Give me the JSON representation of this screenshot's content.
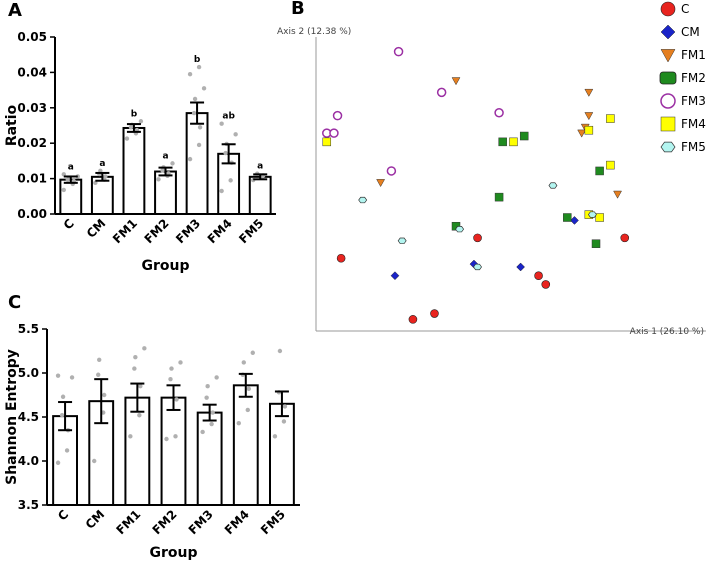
{
  "panels": {
    "a": "A",
    "b": "B",
    "c": "C"
  },
  "colors": {
    "C": "#e8241f",
    "CM": "#1a24c8",
    "FM1": "#e57f20",
    "FM2": "#1f8a1f",
    "FM3": "#9b2fa3",
    "FM4": "#ffff00",
    "FM5": "#b3f5f0",
    "grid_dot": "#b0b0b0",
    "axis_pcoa": "#9a9a9a"
  },
  "chart_data": [
    {
      "id": "A",
      "type": "bar",
      "xlabel": "Group",
      "ylabel": "Ratio",
      "ylim": [
        0,
        0.05
      ],
      "yticks": [
        "0.00",
        "0.01",
        "0.02",
        "0.03",
        "0.04",
        "0.05"
      ],
      "yticks_values": [
        0,
        0.01,
        0.02,
        0.03,
        0.04,
        0.05
      ],
      "categories": [
        "C",
        "CM",
        "FM1",
        "FM2",
        "FM3",
        "FM4",
        "FM5"
      ],
      "values": [
        0.0097,
        0.0105,
        0.0243,
        0.012,
        0.0285,
        0.017,
        0.0105
      ],
      "errors": [
        0.0009,
        0.0011,
        0.0011,
        0.0011,
        0.003,
        0.0027,
        0.0007
      ],
      "significance": [
        "a",
        "a",
        "b",
        "a",
        "b",
        "ab",
        "a"
      ],
      "points": [
        [
          0.0068,
          0.0085,
          0.0093,
          0.0097,
          0.0101,
          0.0106,
          0.0112
        ],
        [
          0.0088,
          0.0097,
          0.0106,
          0.0113,
          0.0122
        ],
        [
          0.0213,
          0.0228,
          0.0237,
          0.0245,
          0.0252,
          0.0262
        ],
        [
          0.0098,
          0.0108,
          0.0115,
          0.0123,
          0.0132,
          0.0143
        ],
        [
          0.0155,
          0.0195,
          0.0245,
          0.0285,
          0.0325,
          0.0355,
          0.0395,
          0.0415
        ],
        [
          0.0065,
          0.0095,
          0.0145,
          0.0172,
          0.0198,
          0.0225,
          0.0255
        ],
        [
          0.0096,
          0.0103,
          0.0109,
          0.0114
        ]
      ]
    },
    {
      "id": "B",
      "type": "scatter",
      "xlabel": "Axis 1 (26.10 %)",
      "ylabel": "Axis 2 (12.38 %)",
      "xlim": [
        0,
        100
      ],
      "ylim": [
        0,
        100
      ],
      "legend_position": "top-right",
      "series": [
        {
          "name": "C",
          "marker": "circle",
          "points": [
            [
              7,
              25
            ],
            [
              45,
              32
            ],
            [
              27,
              4
            ],
            [
              33,
              6
            ],
            [
              62,
              19
            ],
            [
              64,
              16
            ],
            [
              86,
              32
            ]
          ]
        },
        {
          "name": "CM",
          "marker": "diamond",
          "points": [
            [
              22,
              19
            ],
            [
              44,
              23
            ],
            [
              57,
              22
            ],
            [
              72,
              38
            ]
          ]
        },
        {
          "name": "FM1",
          "marker": "triangle",
          "points": [
            [
              18,
              51
            ],
            [
              39,
              86
            ],
            [
              76,
              82
            ],
            [
              76,
              74
            ],
            [
              75,
              70
            ],
            [
              74,
              68
            ],
            [
              84,
              47
            ]
          ]
        },
        {
          "name": "FM2",
          "marker": "square",
          "points": [
            [
              52,
              65
            ],
            [
              58,
              67
            ],
            [
              51,
              46
            ],
            [
              39,
              36
            ],
            [
              70,
              39
            ],
            [
              79,
              55
            ],
            [
              78,
              30
            ]
          ]
        },
        {
          "name": "FM3",
          "marker": "ring",
          "points": [
            [
              23,
              96
            ],
            [
              35,
              82
            ],
            [
              51,
              75
            ],
            [
              6,
              74
            ],
            [
              3,
              68
            ],
            [
              5,
              68
            ],
            [
              21,
              55
            ]
          ]
        },
        {
          "name": "FM4",
          "marker": "square",
          "points": [
            [
              3,
              65
            ],
            [
              55,
              65
            ],
            [
              76,
              69
            ],
            [
              82,
              73
            ],
            [
              82,
              57
            ],
            [
              79,
              39
            ],
            [
              76,
              40
            ]
          ]
        },
        {
          "name": "FM5",
          "marker": "hexagon",
          "points": [
            [
              13,
              45
            ],
            [
              24,
              31
            ],
            [
              40,
              35
            ],
            [
              45,
              22
            ],
            [
              66,
              50
            ],
            [
              77,
              40
            ]
          ]
        }
      ]
    },
    {
      "id": "C",
      "type": "bar",
      "xlabel": "Group",
      "ylabel": "Shannon Entropy",
      "ylim": [
        3.5,
        5.5
      ],
      "yticks": [
        "3.5",
        "4.0",
        "4.5",
        "5.0",
        "5.5"
      ],
      "yticks_values": [
        3.5,
        4.0,
        4.5,
        5.0,
        5.5
      ],
      "categories": [
        "C",
        "CM",
        "FM1",
        "FM2",
        "FM3",
        "FM4",
        "FM5"
      ],
      "values": [
        4.51,
        4.68,
        4.72,
        4.72,
        4.55,
        4.86,
        4.65
      ],
      "errors": [
        0.16,
        0.25,
        0.16,
        0.14,
        0.09,
        0.13,
        0.14
      ],
      "points": [
        [
          3.98,
          4.12,
          4.35,
          4.52,
          4.73,
          4.95,
          4.97
        ],
        [
          4.0,
          4.55,
          4.75,
          4.98,
          5.15
        ],
        [
          4.28,
          4.52,
          4.85,
          5.05,
          5.18,
          5.28
        ],
        [
          4.25,
          4.28,
          4.7,
          4.93,
          5.05,
          5.12
        ],
        [
          4.33,
          4.42,
          4.55,
          4.72,
          4.85,
          4.95
        ],
        [
          4.43,
          4.58,
          4.82,
          4.98,
          5.12,
          5.23
        ],
        [
          4.28,
          4.45,
          4.62,
          4.78,
          5.25
        ]
      ]
    }
  ]
}
